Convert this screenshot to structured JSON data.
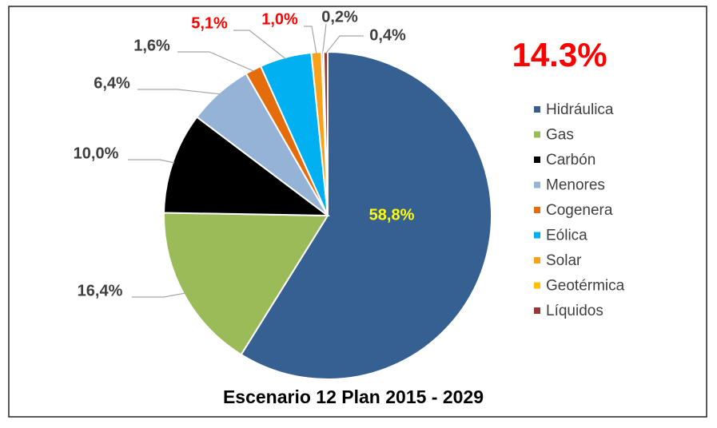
{
  "chart_data": {
    "type": "pie",
    "title": "Escenario 12 Plan 2015 - 2029",
    "annotation": "14.3%",
    "categories": [
      "Hidráulica",
      "Gas",
      "Carbón",
      "Menores",
      "Cogenera",
      "Eólica",
      "Solar",
      "Geotérmica",
      "Líquidos"
    ],
    "values": [
      58.8,
      16.4,
      10.0,
      6.4,
      1.6,
      5.1,
      1.0,
      0.2,
      0.4
    ],
    "value_labels": [
      "58,8%",
      "16,4%",
      "10,0%",
      "6,4%",
      "1,6%",
      "5,1%",
      "1,0%",
      "0,2%",
      "0,4%"
    ],
    "colors": [
      "#376092",
      "#9bbb59",
      "#000000",
      "#95b3d7",
      "#e46c0a",
      "#00b0f0",
      "#f9a11b",
      "#ffc000",
      "#953735"
    ],
    "value_label_colors": [
      "#ffff00",
      "#404040",
      "#404040",
      "#404040",
      "#404040",
      "#ff0000",
      "#ff0000",
      "#404040",
      "#404040"
    ],
    "annotation_color": "#ff0000",
    "legend": "right"
  }
}
